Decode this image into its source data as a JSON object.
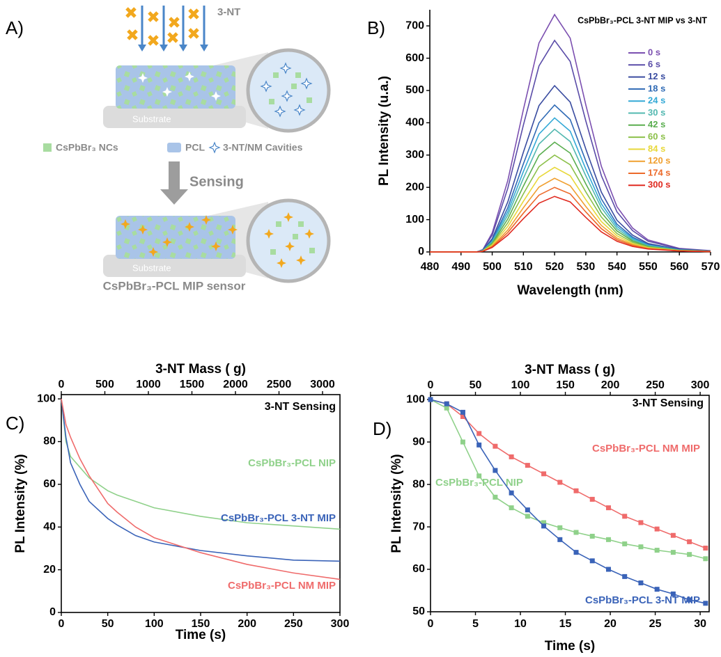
{
  "diagram": {
    "label": "A)",
    "analyte": "3-NT",
    "substrate_top": "Substrate",
    "substrate_bottom": "Substrate",
    "legend": [
      "CsPbBr₃ NCs",
      "PCL",
      "3-NT/NM Cavities"
    ],
    "step": "Sensing",
    "caption": "CsPbBr₃-PCL MIP sensor"
  },
  "chart_data": [
    {
      "type": "line",
      "label": "B)",
      "title": "CsPbBr₃-PCL 3-NT MIP vs 3-NT",
      "xlabel": "Wavelength (nm)",
      "ylabel": "PL Intensity (u.a.)",
      "xlim": [
        480,
        570
      ],
      "xticks": [
        480,
        490,
        500,
        510,
        520,
        530,
        540,
        550,
        560,
        570
      ],
      "ylim": [
        0,
        750
      ],
      "yticks": [
        0,
        100,
        200,
        300,
        400,
        500,
        600,
        700
      ],
      "legend": true,
      "markers": false,
      "x": [
        480,
        490,
        495,
        497,
        500,
        505,
        510,
        515,
        520,
        525,
        530,
        535,
        540,
        545,
        550,
        560,
        570
      ],
      "series": [
        {
          "name": "0 s",
          "color": "#7b4fb0",
          "values": [
            0,
            0,
            0,
            7,
            59,
            221,
            441,
            647,
            735,
            662,
            456,
            265,
            140,
            74,
            37,
            11,
            4
          ]
        },
        {
          "name": "6 s",
          "color": "#5a4ca8",
          "values": [
            0,
            0,
            0,
            7,
            52,
            197,
            393,
            576,
            655,
            590,
            406,
            236,
            124,
            66,
            33,
            10,
            3
          ]
        },
        {
          "name": "12 s",
          "color": "#3a4ca0",
          "values": [
            0,
            0,
            0,
            5,
            41,
            155,
            309,
            453,
            515,
            464,
            319,
            185,
            98,
            52,
            26,
            8,
            3
          ]
        },
        {
          "name": "18 s",
          "color": "#2f6ab5",
          "values": [
            0,
            0,
            0,
            5,
            36,
            137,
            273,
            400,
            455,
            410,
            282,
            164,
            86,
            46,
            23,
            7,
            2
          ]
        },
        {
          "name": "24 s",
          "color": "#33a9d6",
          "values": [
            0,
            0,
            0,
            4,
            33,
            125,
            249,
            365,
            415,
            374,
            257,
            149,
            79,
            42,
            21,
            6,
            2
          ]
        },
        {
          "name": "30 s",
          "color": "#52b8b0",
          "values": [
            0,
            0,
            0,
            4,
            30,
            114,
            228,
            334,
            380,
            342,
            236,
            137,
            72,
            38,
            19,
            6,
            2
          ]
        },
        {
          "name": "42 s",
          "color": "#5aae4f",
          "values": [
            0,
            0,
            0,
            3,
            27,
            102,
            204,
            299,
            340,
            306,
            211,
            122,
            65,
            34,
            17,
            5,
            2
          ]
        },
        {
          "name": "60 s",
          "color": "#8cc04a",
          "values": [
            0,
            0,
            0,
            3,
            24,
            90,
            180,
            264,
            300,
            270,
            186,
            108,
            57,
            30,
            15,
            5,
            2
          ]
        },
        {
          "name": "84 s",
          "color": "#e8d83a",
          "values": [
            0,
            0,
            0,
            3,
            21,
            79,
            157,
            231,
            262,
            236,
            162,
            94,
            50,
            26,
            13,
            4,
            1
          ]
        },
        {
          "name": "120 s",
          "color": "#f0a030",
          "values": [
            0,
            0,
            0,
            2,
            18,
            68,
            137,
            201,
            228,
            205,
            141,
            82,
            43,
            23,
            11,
            3,
            1
          ]
        },
        {
          "name": "174 s",
          "color": "#ec6a2a",
          "values": [
            0,
            0,
            0,
            2,
            16,
            60,
            120,
            176,
            200,
            180,
            124,
            72,
            38,
            20,
            10,
            3,
            1
          ]
        },
        {
          "name": "300 s",
          "color": "#e02a20",
          "values": [
            0,
            0,
            0,
            2,
            14,
            52,
            103,
            151,
            172,
            155,
            107,
            62,
            33,
            17,
            9,
            3,
            1
          ]
        }
      ]
    },
    {
      "type": "line",
      "label": "C)",
      "annotation": "3-NT Sensing",
      "xlabel": "Time (s)",
      "x2label": "3-NT Mass ( g)",
      "ylabel": "PL Intensity (%)",
      "xlim": [
        0,
        300
      ],
      "xticks": [
        0,
        50,
        100,
        150,
        200,
        250,
        300
      ],
      "x2lim": [
        0,
        3200
      ],
      "x2ticks": [
        0,
        500,
        1000,
        1500,
        2000,
        2500,
        3000
      ],
      "ylim": [
        0,
        102
      ],
      "yticks": [
        0,
        20,
        40,
        60,
        80,
        100
      ],
      "legend": false,
      "markers": false,
      "x": [
        0,
        5,
        10,
        20,
        30,
        50,
        60,
        80,
        100,
        150,
        200,
        250,
        300
      ],
      "series": [
        {
          "name": "CsPbBr₃-PCL NIP",
          "color": "#8fd18a",
          "values": [
            100,
            80,
            73,
            68,
            63,
            57,
            55,
            52,
            49,
            45,
            42,
            40.5,
            39
          ]
        },
        {
          "name": "CsPbBr₃-PCL 3-NT MIP",
          "color": "#3a63b8",
          "values": [
            100,
            82,
            70,
            60,
            52,
            44,
            41,
            36,
            33,
            29,
            26.5,
            24.5,
            24
          ]
        },
        {
          "name": "CsPbBr₃-PCL NM MIP",
          "color": "#ef6b6b",
          "values": [
            100,
            88,
            82,
            72,
            64,
            51,
            47,
            40,
            35,
            28,
            22.5,
            18.5,
            15.5
          ]
        }
      ]
    },
    {
      "type": "line",
      "label": "D)",
      "annotation": "3-NT Sensing",
      "xlabel": "Time (s)",
      "x2label": "3-NT Mass ( g)",
      "ylabel": "PL Intensity (%)",
      "xlim": [
        0,
        31
      ],
      "xticks": [
        0,
        5,
        10,
        15,
        20,
        25,
        30
      ],
      "x2lim": [
        0,
        310
      ],
      "x2ticks": [
        0,
        50,
        100,
        150,
        200,
        250,
        300
      ],
      "ylim": [
        50,
        101
      ],
      "yticks": [
        50,
        60,
        70,
        80,
        90,
        100
      ],
      "legend": false,
      "markers": true,
      "x": [
        0,
        1.8,
        3.6,
        5.4,
        7.2,
        9,
        10.8,
        12.6,
        14.4,
        16.2,
        18,
        19.8,
        21.6,
        23.4,
        25.2,
        27,
        28.8,
        30.6
      ],
      "series": [
        {
          "name": "CsPbBr₃-PCL NM MIP",
          "color": "#ef6b6b",
          "values": [
            100,
            99,
            96,
            92,
            89,
            86.5,
            84.5,
            82.5,
            80.5,
            78.5,
            76.5,
            74.5,
            72.5,
            71,
            69.5,
            68,
            66.5,
            65
          ]
        },
        {
          "name": "CsPbBr₃-PCL NIP",
          "color": "#8fd18a",
          "values": [
            100,
            98,
            90,
            82,
            77,
            74.5,
            72.5,
            71,
            69.8,
            68.7,
            67.8,
            67,
            66,
            65.3,
            64.5,
            64,
            63.5,
            62.5
          ]
        },
        {
          "name": "CsPbBr₃-PCL 3-NT MIP",
          "color": "#3a63b8",
          "values": [
            100,
            99,
            97,
            89.3,
            83.3,
            78,
            74,
            70.2,
            67,
            64,
            62,
            60,
            58.3,
            56.8,
            55.3,
            54.2,
            52.8,
            52
          ]
        }
      ]
    }
  ]
}
